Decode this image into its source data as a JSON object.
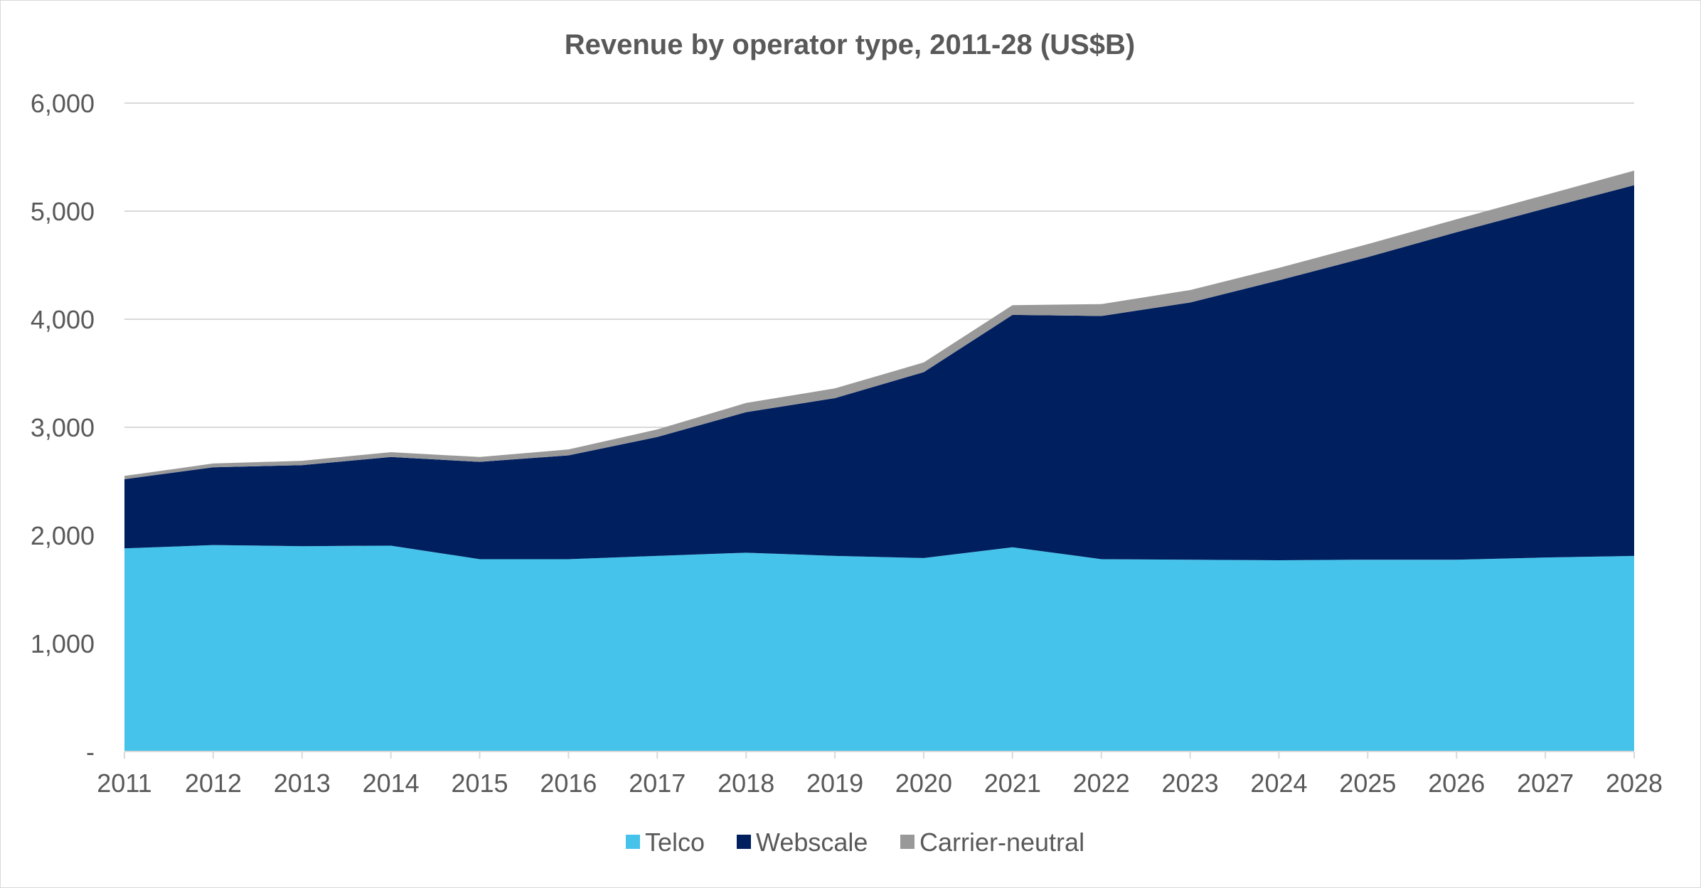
{
  "chart_data": {
    "type": "area",
    "stacked": true,
    "title": "Revenue by operator type, 2011-28 (US$B)",
    "xlabel": "",
    "ylabel": "",
    "x": [
      "2011",
      "2012",
      "2013",
      "2014",
      "2015",
      "2016",
      "2017",
      "2018",
      "2019",
      "2020",
      "2021",
      "2022",
      "2023",
      "2024",
      "2025",
      "2026",
      "2027",
      "2028"
    ],
    "ylim": [
      0,
      6000
    ],
    "yticks": [
      0,
      1000,
      2000,
      3000,
      4000,
      5000,
      6000
    ],
    "ytick_labels": [
      "-",
      "1,000",
      "2,000",
      "3,000",
      "4,000",
      "5,000",
      "6,000"
    ],
    "grid": true,
    "legend_position": "bottom",
    "series": [
      {
        "name": "Telco",
        "color": "#46c3ea",
        "values": [
          1880,
          1910,
          1900,
          1905,
          1780,
          1780,
          1810,
          1840,
          1810,
          1790,
          1890,
          1780,
          1775,
          1770,
          1775,
          1775,
          1795,
          1810
        ]
      },
      {
        "name": "Webscale",
        "color": "#001f5f",
        "values": [
          640,
          720,
          750,
          820,
          900,
          960,
          1100,
          1300,
          1460,
          1720,
          2150,
          2250,
          2380,
          2590,
          2800,
          3030,
          3230,
          3430
        ]
      },
      {
        "name": "Carrier-neutral",
        "color": "#999999",
        "values": [
          30,
          35,
          40,
          45,
          45,
          55,
          70,
          85,
          90,
          90,
          90,
          110,
          115,
          115,
          120,
          120,
          125,
          135
        ]
      }
    ]
  }
}
